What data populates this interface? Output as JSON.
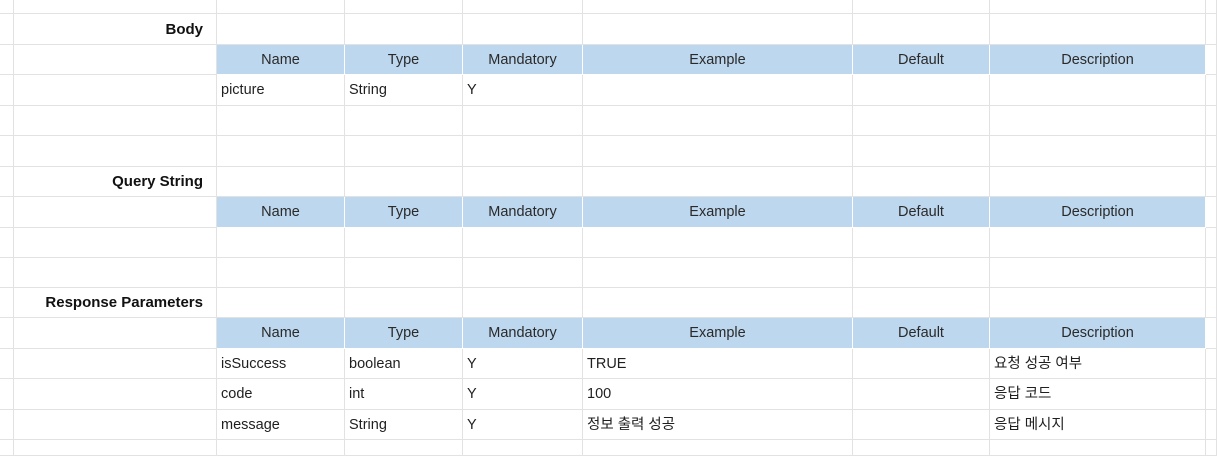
{
  "columns": [
    "",
    "Name",
    "Type",
    "Mandatory",
    "Example",
    "Default",
    "Description"
  ],
  "sections": [
    {
      "id": "body",
      "label": "Body",
      "rows": [
        [
          "picture",
          "String",
          "Y",
          "",
          "",
          ""
        ]
      ]
    },
    {
      "id": "query-string",
      "label": "Query String",
      "rows": []
    },
    {
      "id": "response-parameters",
      "label": "Response Parameters",
      "rows": [
        [
          "isSuccess",
          "boolean",
          "Y",
          "TRUE",
          "",
          "요청 성공 여부"
        ],
        [
          "code",
          "int",
          "Y",
          "100",
          "",
          "응답 코드"
        ],
        [
          "message",
          "String",
          "Y",
          "정보 출력 성공",
          "",
          "응답 메시지"
        ]
      ]
    }
  ],
  "colors": {
    "header_fill": "#bdd7ee",
    "gridline": "#e2e2e2"
  }
}
